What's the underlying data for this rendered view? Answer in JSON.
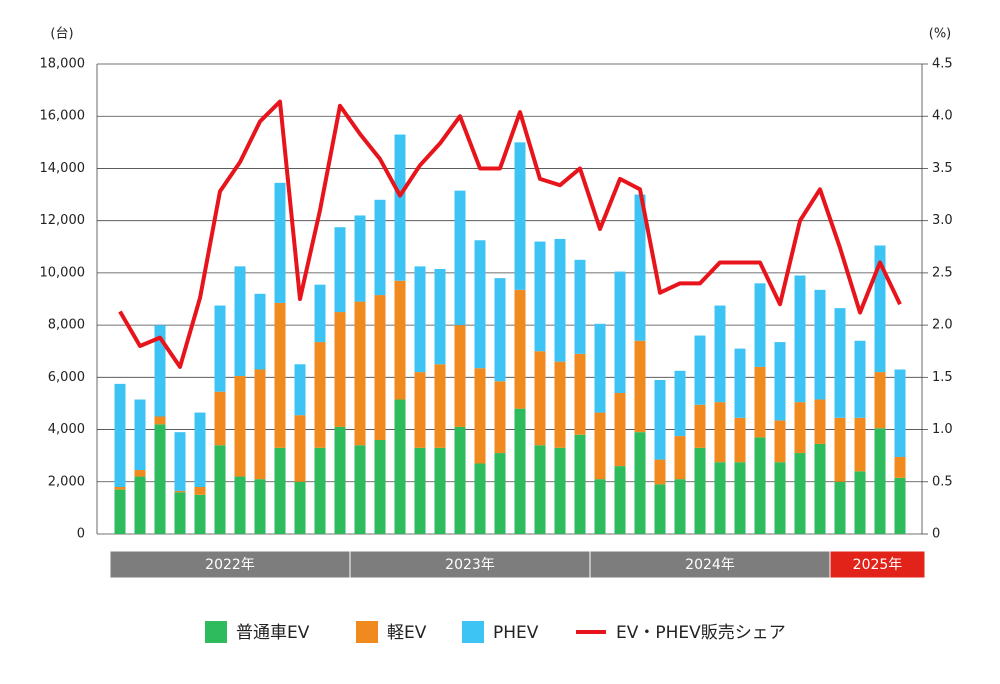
{
  "chart_data": {
    "type": "stacked-bar-line",
    "y_unit_label": "(台)",
    "y2_unit_label": "(%)",
    "categories": [
      null,
      null,
      null,
      null,
      null,
      null,
      null,
      null,
      null,
      null,
      null,
      null,
      null,
      null,
      null,
      null,
      null,
      null,
      null,
      null,
      null,
      null,
      null,
      null,
      null,
      null,
      null,
      null,
      null,
      null,
      null,
      null,
      null,
      null,
      null,
      null,
      null,
      null,
      null,
      null
    ],
    "year_groups": [
      {
        "label": "2022年",
        "count": 12,
        "color": "#7d7d7d"
      },
      {
        "label": "2023年",
        "count": 12,
        "color": "#7d7d7d"
      },
      {
        "label": "2024年",
        "count": 12,
        "color": "#7d7d7d"
      },
      {
        "label": "2025年",
        "count": 4,
        "color": "#e2231a"
      }
    ],
    "series": [
      {
        "name": "普通車EV",
        "color": "#2dbb5d",
        "values": [
          1700,
          2200,
          4200,
          1600,
          1500,
          3400,
          2200,
          2100,
          3300,
          2000,
          3300,
          4100,
          3400,
          3600,
          5150,
          3300,
          3300,
          4100,
          2700,
          3100,
          4800,
          3400,
          3300,
          3800,
          2100,
          2600,
          3900,
          1900,
          2100,
          3300,
          2750,
          2750,
          3700,
          2750,
          3100,
          3450,
          2000,
          2400,
          4050,
          2150
        ]
      },
      {
        "name": "軽EV",
        "color": "#f08a1e",
        "values": [
          100,
          250,
          300,
          50,
          300,
          2050,
          3850,
          4200,
          5550,
          2550,
          4050,
          4400,
          5500,
          5550,
          4550,
          2900,
          3200,
          3900,
          3650,
          2750,
          4550,
          3600,
          3300,
          3100,
          2550,
          2800,
          3500,
          950,
          1650,
          1650,
          2300,
          1700,
          2700,
          1600,
          1950,
          1700,
          2450,
          2050,
          2150,
          800
        ]
      },
      {
        "name": "PHEV",
        "color": "#3ec3f5",
        "values": [
          3950,
          2700,
          3500,
          2250,
          2850,
          3300,
          4200,
          2900,
          4600,
          1950,
          2200,
          3250,
          3300,
          3650,
          5600,
          4050,
          3650,
          5150,
          4900,
          3950,
          5650,
          4200,
          4700,
          3600,
          3400,
          4650,
          5600,
          3050,
          2500,
          2650,
          3700,
          2650,
          3200,
          3000,
          4850,
          4200,
          4200,
          2950,
          4850,
          3350
        ]
      },
      {
        "name": "EV・PHEV販売シェア",
        "color": "#e8141c",
        "axis": "y2",
        "values": [
          2.13,
          1.8,
          1.88,
          1.6,
          2.26,
          3.28,
          3.56,
          3.95,
          4.14,
          2.25,
          3.1,
          4.1,
          3.83,
          3.59,
          3.24,
          3.53,
          3.74,
          4.0,
          3.5,
          3.5,
          4.04,
          3.4,
          3.34,
          3.5,
          2.92,
          3.4,
          3.3,
          2.31,
          2.4,
          2.4,
          2.6,
          2.6,
          2.6,
          2.2,
          3.0,
          3.3,
          2.74,
          2.12,
          2.6,
          2.2
        ]
      }
    ],
    "ylim": [
      0,
      18000
    ],
    "yticks": [
      0,
      {
        "value": 2000,
        "label": "2,000"
      },
      {
        "value": 4000,
        "label": "4,000"
      },
      {
        "value": 6000,
        "label": "6,000"
      },
      {
        "value": 8000,
        "label": "8,000"
      },
      {
        "value": 10000,
        "label": "10,000"
      },
      {
        "value": 12000,
        "label": "12,000"
      },
      {
        "value": 14000,
        "label": "14,000"
      },
      {
        "value": 16000,
        "label": "16,000"
      },
      {
        "value": 18000,
        "label": "18,000"
      }
    ],
    "y2lim": [
      0,
      4.5
    ],
    "y2ticks": [
      0,
      0.5,
      {
        "value": 1,
        "label": "1.0"
      },
      1.5,
      {
        "value": 2,
        "label": "2.0"
      },
      2.5,
      {
        "value": 3,
        "label": "3.0"
      },
      3.5,
      {
        "value": 4,
        "label": "4.0"
      },
      4.5
    ],
    "grid": true
  }
}
